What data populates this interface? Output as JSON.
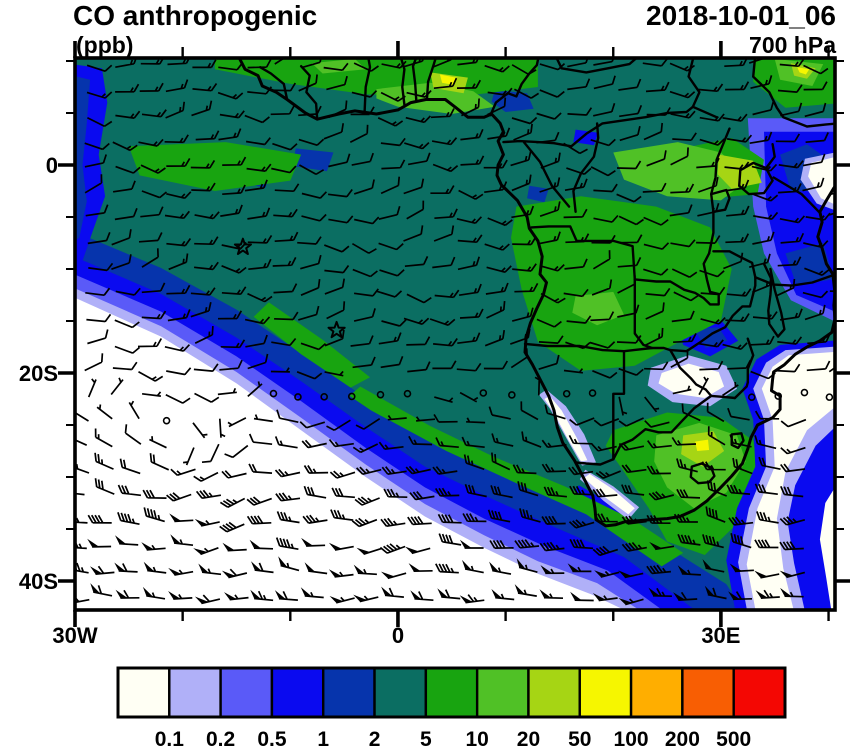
{
  "header": {
    "title": "CO anthropogenic",
    "units": "(ppb)",
    "datetime": "2018-10-01_06",
    "level": "700 hPa"
  },
  "axes": {
    "lat": {
      "tick_labels": [
        {
          "text": "0",
          "value": 0
        },
        {
          "text": "20S",
          "value": -20
        },
        {
          "text": "40S",
          "value": -40
        }
      ]
    },
    "lon": {
      "tick_labels": [
        {
          "text": "30W",
          "value": -30
        },
        {
          "text": "0",
          "value": 0
        },
        {
          "text": "30E",
          "value": 30
        }
      ]
    }
  },
  "colorbar": {
    "labels": [
      "0.1",
      "0.2",
      "0.5",
      "1",
      "2",
      "5",
      "10",
      "20",
      "50",
      "100",
      "200",
      "500"
    ],
    "colors": [
      "#FFFFF4",
      "#B0B0F8",
      "#5A5AF8",
      "#0A0AF0",
      "#0634AC",
      "#0B6E62",
      "#18A410",
      "#50C126",
      "#A6D514",
      "#F6F600",
      "#FFAE00",
      "#F85E03",
      "#F40703"
    ]
  },
  "star_markers": [
    {
      "lon": -14.4,
      "lat": -7.9
    },
    {
      "lon": -5.7,
      "lat": -15.9
    }
  ],
  "chart_data": {
    "type": "heatmap",
    "title": "CO anthropogenic",
    "units": "ppb",
    "time": "2018-10-01_06",
    "level": "700 hPa",
    "projection": "cylindrical lat-lon",
    "lon_range_deg": [
      -30,
      40.6
    ],
    "lat_range_deg": [
      -42.8,
      10.3
    ],
    "lat_tick_labels": [
      "0",
      "20S",
      "40S"
    ],
    "lon_tick_labels": [
      "30W",
      "0",
      "30E"
    ],
    "contour_levels": [
      0.1,
      0.2,
      0.5,
      1,
      2,
      5,
      10,
      20,
      50,
      100,
      200,
      500
    ],
    "palette": [
      "#FFFFF4",
      "#B0B0F8",
      "#5A5AF8",
      "#0A0AF0",
      "#0634AC",
      "#0B6E62",
      "#18A410",
      "#50C126",
      "#A6D514",
      "#F6F600",
      "#FFAE00",
      "#F85E03",
      "#F40703"
    ],
    "overlays": [
      "wind barbs",
      "coastlines",
      "country borders",
      "station star markers"
    ],
    "field_summary": [
      {
        "region": "tropical South Atlantic and Congo basin plume core",
        "approx_value_ppb": "2-5"
      },
      {
        "region": "green filament along southwest plume edge",
        "approx_value_ppb": "5-10"
      },
      {
        "region": "Angola / Zambia / southern DRC land",
        "approx_value_ppb": "5-20"
      },
      {
        "region": "Gulf of Guinea coast, southern Nigeria",
        "approx_value_ppb": "20-100"
      },
      {
        "region": "Lake Victoria / Uganda",
        "approx_value_ppb": "20-50"
      },
      {
        "region": "South African Highveld",
        "approx_value_ppb": "20-100"
      },
      {
        "region": "southwest Atlantic south of plume edge",
        "approx_value_ppb": "<0.1"
      },
      {
        "region": "Kenya coast / western Indian Ocean",
        "approx_value_ppb": "0.1-2"
      },
      {
        "region": "Botswana-Zimbabwe interior patch",
        "approx_value_ppb": "<0.1"
      }
    ],
    "wind_summary": [
      {
        "region": "tropics north of ~18S",
        "flow": "easterly 10-15 kt"
      },
      {
        "region": "20S-28S transition",
        "flow": "light variable 5-10 kt"
      },
      {
        "region": "south of 30S",
        "flow": "westerly 25-55 kt with 50-kt flags near 40S"
      }
    ]
  }
}
